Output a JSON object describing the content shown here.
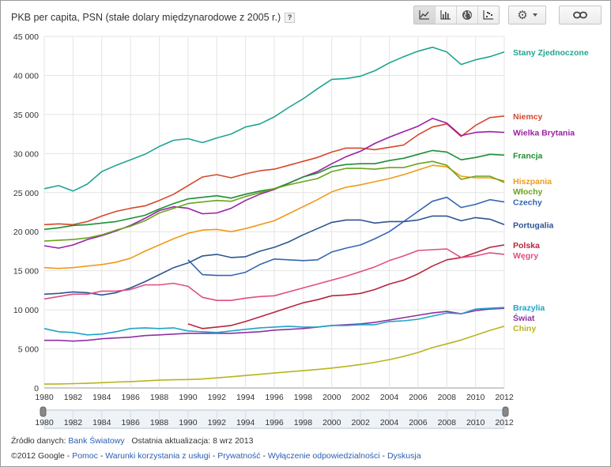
{
  "header": {
    "title": "PKB per capita, PSN (stałe dolary międzynarodowe z 2005 r.)",
    "help_label": "?",
    "view_buttons": [
      "line-chart-icon",
      "bar-chart-icon",
      "globe-icon",
      "scatter-chart-icon"
    ],
    "settings_icon": "gear-icon",
    "link_icon": "link-icon"
  },
  "chart_data": {
    "type": "line",
    "title": "PKB per capita, PSN (stałe dolary międzynarodowe z 2005 r.)",
    "xlabel": "",
    "ylabel": "",
    "x": [
      1980,
      1981,
      1982,
      1983,
      1984,
      1985,
      1986,
      1987,
      1988,
      1989,
      1990,
      1991,
      1992,
      1993,
      1994,
      1995,
      1996,
      1997,
      1998,
      1999,
      2000,
      2001,
      2002,
      2003,
      2004,
      2005,
      2006,
      2007,
      2008,
      2009,
      2010,
      2011,
      2012
    ],
    "xlim": [
      1980,
      2012
    ],
    "ylim": [
      0,
      45000
    ],
    "x_ticks": [
      "1980",
      "1982",
      "1984",
      "1986",
      "1988",
      "1990",
      "1992",
      "1994",
      "1996",
      "1998",
      "2000",
      "2002",
      "2004",
      "2006",
      "2008",
      "2010",
      "2012"
    ],
    "y_ticks": [
      "0",
      "5 000",
      "10 000",
      "15 000",
      "20 000",
      "25 000",
      "30 000",
      "35 000",
      "40 000",
      "45 000"
    ],
    "grid": true,
    "legend_placement": "right",
    "series": [
      {
        "name": "Stany Zjednoczone",
        "color": "#1fa493",
        "values": [
          25500,
          25900,
          25200,
          26100,
          27700,
          28500,
          29200,
          29900,
          30900,
          31700,
          31900,
          31400,
          32000,
          32500,
          33400,
          33800,
          34700,
          35900,
          37000,
          38300,
          39500,
          39600,
          39900,
          40600,
          41600,
          42400,
          43100,
          43600,
          43000,
          41400,
          42000,
          42400,
          43000
        ]
      },
      {
        "name": "Niemcy",
        "color": "#d5472b",
        "values": [
          20900,
          21000,
          20900,
          21300,
          22000,
          22600,
          23000,
          23300,
          24000,
          24800,
          25900,
          27000,
          27300,
          26900,
          27400,
          27800,
          28000,
          28500,
          29000,
          29500,
          30200,
          30700,
          30700,
          30500,
          30800,
          31100,
          32400,
          33400,
          33800,
          32200,
          33600,
          34600,
          34800
        ]
      },
      {
        "name": "Wielka Brytania",
        "color": "#9b1fa7",
        "values": [
          18200,
          17900,
          18300,
          19000,
          19500,
          20100,
          20800,
          21700,
          22700,
          23200,
          23000,
          22300,
          22400,
          23000,
          24000,
          24800,
          25400,
          26200,
          27000,
          27700,
          28700,
          29600,
          30300,
          31300,
          32100,
          32800,
          33500,
          34500,
          33900,
          32300,
          32700,
          32800,
          32700
        ]
      },
      {
        "name": "Francja",
        "color": "#1d8f36",
        "values": [
          20300,
          20500,
          20800,
          20900,
          21100,
          21300,
          21700,
          22100,
          22900,
          23600,
          24200,
          24400,
          24600,
          24300,
          24800,
          25200,
          25500,
          26200,
          27000,
          27500,
          28300,
          28600,
          28700,
          28700,
          29100,
          29400,
          29900,
          30400,
          30200,
          29200,
          29500,
          29900,
          29800
        ]
      },
      {
        "name": "Hiszpania",
        "color": "#f19a18",
        "values": [
          15400,
          15300,
          15400,
          15600,
          15800,
          16100,
          16600,
          17500,
          18300,
          19100,
          19800,
          20200,
          20300,
          20000,
          20400,
          20900,
          21400,
          22300,
          23200,
          24100,
          25100,
          25700,
          26000,
          26400,
          26800,
          27300,
          27900,
          28500,
          28300,
          27100,
          26900,
          26900,
          26500
        ]
      },
      {
        "name": "Włochy",
        "color": "#6aa41b",
        "values": [
          18800,
          18900,
          19000,
          19200,
          19600,
          20200,
          20700,
          21400,
          22400,
          23000,
          23600,
          23800,
          24000,
          23900,
          24500,
          25000,
          25500,
          26000,
          26400,
          26800,
          27700,
          28100,
          28100,
          28000,
          28200,
          28200,
          28700,
          29000,
          28500,
          26700,
          27100,
          27100,
          26300
        ]
      },
      {
        "name": "Czechy",
        "color": "#3366b3",
        "values": [
          null,
          null,
          null,
          null,
          null,
          null,
          null,
          null,
          null,
          null,
          16400,
          14500,
          14400,
          14400,
          14800,
          15800,
          16500,
          16400,
          16300,
          16400,
          17400,
          17900,
          18300,
          19100,
          20000,
          21300,
          22600,
          23900,
          24400,
          23100,
          23500,
          24100,
          23800
        ]
      },
      {
        "name": "Portugalia",
        "color": "#2e5590",
        "values": [
          12000,
          12100,
          12300,
          12200,
          11900,
          12200,
          12800,
          13600,
          14500,
          15400,
          16000,
          16900,
          17100,
          16700,
          16800,
          17500,
          18000,
          18700,
          19600,
          20400,
          21200,
          21500,
          21500,
          21100,
          21300,
          21300,
          21500,
          22000,
          22000,
          21400,
          21800,
          21600,
          20900
        ]
      },
      {
        "name": "Polska",
        "color": "#b5263c",
        "values": [
          null,
          null,
          null,
          null,
          null,
          null,
          null,
          null,
          null,
          null,
          8200,
          7600,
          7800,
          8000,
          8500,
          9100,
          9700,
          10300,
          10900,
          11300,
          11800,
          11900,
          12100,
          12600,
          13300,
          13800,
          14600,
          15600,
          16400,
          16700,
          17300,
          18000,
          18300
        ]
      },
      {
        "name": "Węgry",
        "color": "#e04d82",
        "values": [
          11400,
          11700,
          12000,
          12000,
          12400,
          12400,
          12600,
          13200,
          13200,
          13400,
          13000,
          11600,
          11200,
          11200,
          11500,
          11700,
          11800,
          12300,
          12800,
          13300,
          13800,
          14300,
          14900,
          15500,
          16300,
          16900,
          17600,
          17700,
          17800,
          16700,
          16900,
          17300,
          17100
        ]
      },
      {
        "name": "Świat",
        "color": "#8e30a3",
        "values": [
          6100,
          6100,
          6000,
          6100,
          6300,
          6400,
          6500,
          6700,
          6800,
          6900,
          7000,
          7000,
          7000,
          7000,
          7100,
          7200,
          7400,
          7500,
          7600,
          7800,
          8000,
          8100,
          8200,
          8400,
          8700,
          9000,
          9300,
          9600,
          9800,
          9500,
          9900,
          10100,
          10200
        ]
      },
      {
        "name": "Brazylia",
        "color": "#20a3c8",
        "values": [
          7600,
          7200,
          7100,
          6800,
          6900,
          7200,
          7600,
          7700,
          7600,
          7700,
          7300,
          7200,
          7100,
          7300,
          7500,
          7700,
          7800,
          7900,
          7800,
          7800,
          8000,
          8000,
          8100,
          8100,
          8500,
          8600,
          8800,
          9200,
          9600,
          9500,
          10100,
          10200,
          10300
        ]
      },
      {
        "name": "Chiny",
        "color": "#b8b41e",
        "values": [
          500,
          520,
          560,
          600,
          680,
          760,
          820,
          900,
          1000,
          1050,
          1080,
          1150,
          1290,
          1440,
          1600,
          1750,
          1910,
          2060,
          2210,
          2370,
          2550,
          2760,
          3000,
          3290,
          3630,
          4040,
          4540,
          5170,
          5640,
          6140,
          6760,
          7370,
          7900
        ]
      }
    ]
  },
  "timeline": {
    "ticks": [
      "1980",
      "1982",
      "1984",
      "1986",
      "1988",
      "1990",
      "1992",
      "1994",
      "1996",
      "1998",
      "2000",
      "2002",
      "2004",
      "2006",
      "2008",
      "2010",
      "2012"
    ]
  },
  "footer": {
    "source_label": "Źródło danych:",
    "source_link": "Bank Światowy",
    "update_label": "Ostatnia aktualizacja: 8 wrz 2013",
    "copyright": "©2012 Google",
    "sep": "-",
    "links": [
      "Pomoc",
      "Warunki korzystania z usługi",
      "Prywatność",
      "Wyłączenie odpowiedzialności",
      "Dyskusja"
    ]
  }
}
